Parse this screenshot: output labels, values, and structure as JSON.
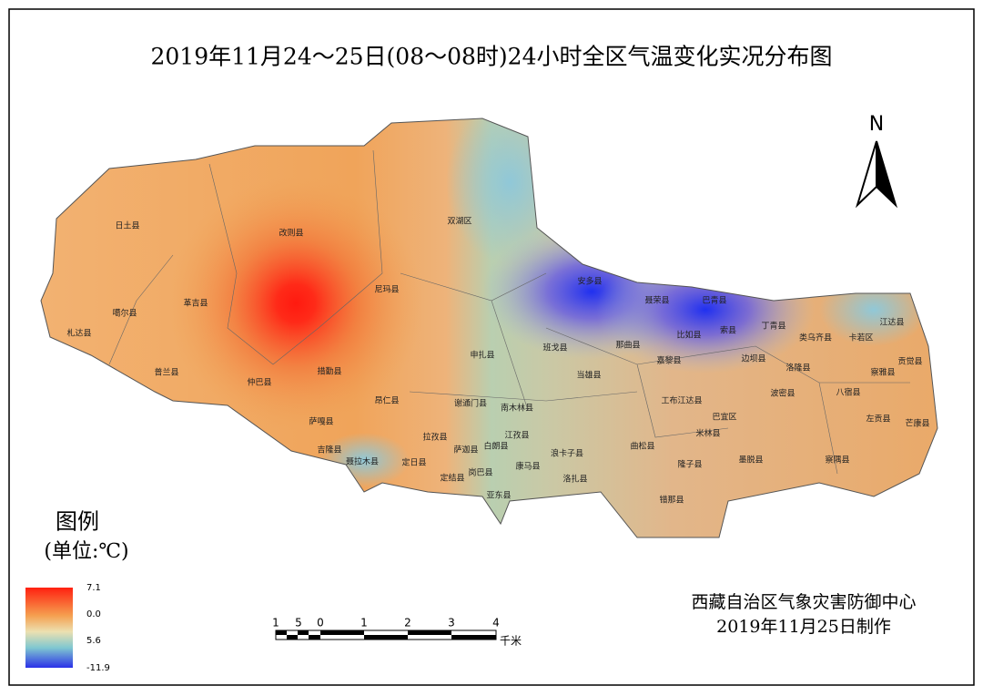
{
  "title": "2019年11月24～25日(08～08时)24小时全区气温变化实况分布图",
  "north": "N",
  "legend": {
    "title": "图例",
    "unit": "(单位:℃)",
    "labels": [
      "7.1",
      "0.0",
      "5.6",
      "-11.9"
    ]
  },
  "scale_bar": {
    "labels": [
      "1",
      "5",
      "0",
      "1",
      "2",
      "3",
      "4"
    ],
    "unit": "千米"
  },
  "credit": [
    "西藏自治区气象灾害防御中心",
    "2019年11月25日制作"
  ],
  "counties": [
    "日土县",
    "改则县",
    "双湖区",
    "尼玛县",
    "革吉县",
    "噶尔县",
    "札达县",
    "普兰县",
    "仲巴县",
    "措勤县",
    "申扎县",
    "班戈县",
    "安多县",
    "聂荣县",
    "巴青县",
    "索县",
    "比如县",
    "那曲县",
    "丁青县",
    "嘉黎县",
    "边坝县",
    "洛隆县",
    "类乌齐县",
    "卡若区",
    "江达县",
    "贡觉县",
    "察雅县",
    "八宿县",
    "左贡县",
    "芒康县",
    "波密县",
    "察隅县",
    "墨脱县",
    "当雄县",
    "昂仁县",
    "萨嘎县",
    "吉隆县",
    "聂拉木县",
    "定日县",
    "定结县",
    "亚东县",
    "岗巴县",
    "康马县",
    "洛扎县",
    "错那县",
    "隆子县",
    "米林县",
    "工布江达县",
    "巴宜区",
    "谢通门县",
    "南木林县",
    "拉孜县",
    "萨迦县",
    "白朗县",
    "江孜县",
    "浪卡子县",
    "曲松县"
  ]
}
